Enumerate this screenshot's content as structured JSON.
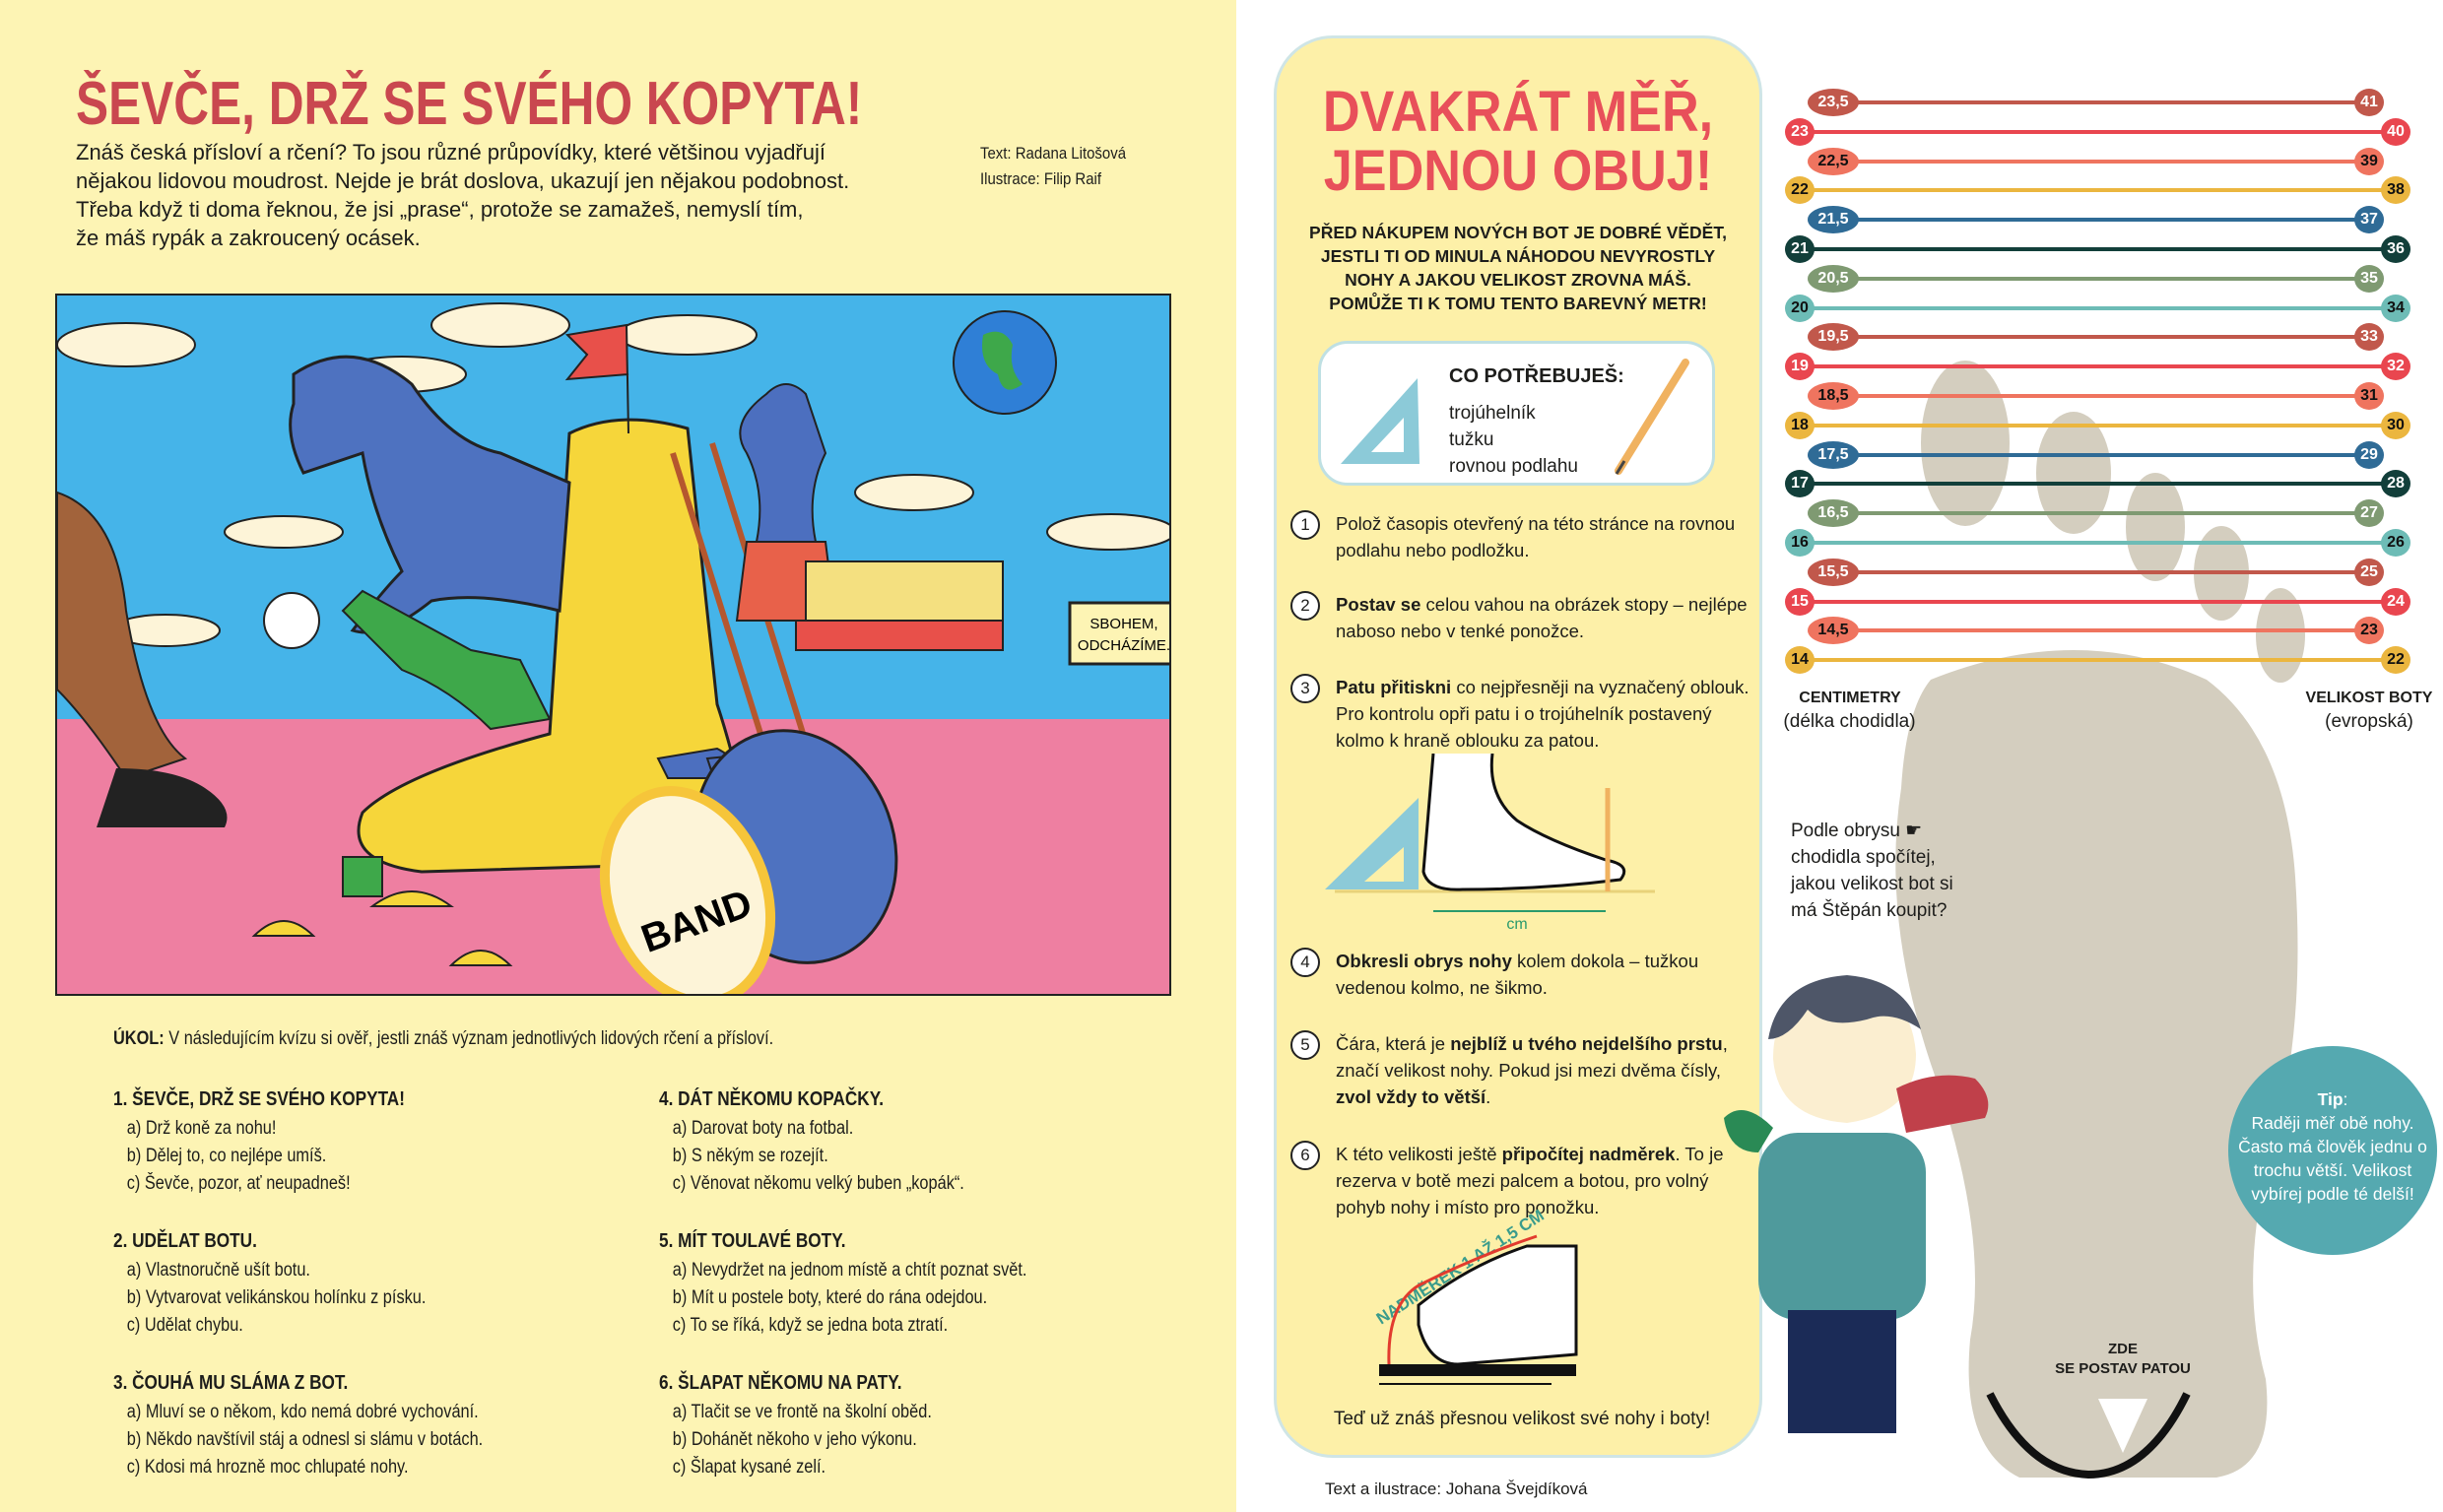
{
  "left_page": {
    "title": "ŠEVČE, DRŽ SE SVÉHO KOPYTA!",
    "intro_lines": [
      "Znáš česká přísloví a rčení? To jsou různé průpovídky, které většinou vyjadřují",
      "nějakou lidovou moudrost. Nejde je brát doslova, ukazují jen nějakou podobnost.",
      "Třeba když ti doma řeknou, že jsi „prase“, protože se zamažeš, nemyslí tím,",
      "že máš rypák a zakroucený ocásek."
    ],
    "credits": [
      "Text: Radana Litošová",
      "Ilustrace: Filip Raif"
    ],
    "illustration": {
      "speech_bubble": [
        "SBOHEM,",
        "ODCHÁZÍME."
      ],
      "drum_text": "BAND"
    },
    "task": {
      "label": "ÚKOL:",
      "text": " V následujícím kvízu si ověř, jestli znáš význam jednotlivých lidových rčení a přísloví."
    },
    "quiz": [
      {
        "q": "1. ŠEVČE, DRŽ SE SVÉHO KOPYTA!",
        "a": [
          "a) Drž koně za nohu!",
          "b) Dělej to, co nejlépe umíš.",
          "c) Ševče, pozor, ať neupadneš!"
        ]
      },
      {
        "q": "2. UDĚLAT BOTU.",
        "a": [
          "a) Vlastnoručně ušít botu.",
          "b) Vytvarovat velikánskou holínku z písku.",
          "c) Udělat chybu."
        ]
      },
      {
        "q": "3. ČOUHÁ MU SLÁMA Z BOT.",
        "a": [
          "a) Mluví se o někom, kdo nemá dobré vychování.",
          "b) Někdo navštívil stáj a odnesl si slámu v botách.",
          "c) Kdosi má hrozně moc chlupaté nohy."
        ]
      },
      {
        "q": "4. DÁT NĚKOMU KOPAČKY.",
        "a": [
          "a) Darovat boty na fotbal.",
          "b) S někým se rozejít.",
          "c) Věnovat někomu velký buben „kopák“."
        ]
      },
      {
        "q": "5. MÍT TOULAVÉ BOTY.",
        "a": [
          "a) Nevydržet na jednom místě a chtít poznat svět.",
          "b) Mít u postele boty, které do rána odejdou.",
          "c) To se říká, když se jedna bota ztratí."
        ]
      },
      {
        "q": "6. ŠLAPAT NĚKOMU NA PATY.",
        "a": [
          "a) Tlačit se ve frontě na školní oběd.",
          "b) Dohánět někoho v jeho výkonu.",
          "c) Šlapat kysané zelí."
        ]
      }
    ]
  },
  "right_page": {
    "title_lines": [
      "DVAKRÁT MĚŘ,",
      "JEDNOU OBUJ!"
    ],
    "subtitle_lines": [
      "PŘED NÁKUPEM NOVÝCH BOT JE DOBRÉ VĚDĚT,",
      "JESTLI TI OD MINULA NÁHODOU NEVYROSTLY",
      "NOHY A JAKOU VELIKOST ZROVNA MÁŠ.",
      "POMŮŽE TI K TOMU TENTO BAREVNÝ METR!"
    ],
    "needs": {
      "heading": "CO POTŘEBUJEŠ:",
      "items": [
        "trojúhelník",
        "tužku",
        "rovnou podlahu"
      ]
    },
    "steps": [
      {
        "n": "1",
        "parts": [
          {
            "t": "Polož časopis otevřený na této stránce na rovnou podlahu nebo podložku."
          }
        ]
      },
      {
        "n": "2",
        "parts": [
          {
            "t": "Postav se",
            "b": true
          },
          {
            "t": " celou vahou na obrázek stopy – nejlépe naboso nebo v tenké ponožce."
          }
        ]
      },
      {
        "n": "3",
        "parts": [
          {
            "t": "Patu přitiskni",
            "b": true
          },
          {
            "t": " co nejpřesněji na vyznačený oblouk. Pro kontrolu opři patu i o trojúhelník postavený kolmo k hraně oblouku za patou."
          }
        ]
      },
      {
        "n": "4",
        "parts": [
          {
            "t": "Obkresli obrys nohy",
            "b": true
          },
          {
            "t": " kolem dokola – tužkou vedenou kolmo, ne šikmo."
          }
        ]
      },
      {
        "n": "5",
        "parts": [
          {
            "t": "Čára, která je "
          },
          {
            "t": "nejblíž u tvého nejdelšího prstu",
            "b": true
          },
          {
            "t": ", značí velikost nohy. Pokud jsi mezi dvěma čísly, "
          },
          {
            "t": "zvol vždy to větší",
            "b": true
          },
          {
            "t": "."
          }
        ]
      },
      {
        "n": "6",
        "parts": [
          {
            "t": "K této velikosti ještě "
          },
          {
            "t": "připočítej nadměrek",
            "b": true
          },
          {
            "t": ". To je rezerva v botě mezi palcem a botou, pro volný pohyb nohy i místo pro ponožku."
          }
        ]
      }
    ],
    "figure_cm_label": "cm",
    "figure_nadmerek_label": "NADMĚREK 1 AŽ 1,5 CM",
    "final": "Teď  už znáš přesnou velikost své nohy i boty!",
    "credit": "Text a ilustrace: Johana Švejdíková",
    "size_chart": {
      "left_label": "CENTIMETRY",
      "left_sublabel": "(délka chodidla)",
      "right_label": "VELIKOST BOTY",
      "right_sublabel": "(evropská)",
      "rows": [
        {
          "cm": "23,5",
          "eu": "41",
          "color": "#c1584b"
        },
        {
          "cm": "23",
          "eu": "40",
          "color": "#e9464f"
        },
        {
          "cm": "22,5",
          "eu": "39",
          "color": "#ef745f"
        },
        {
          "cm": "22",
          "eu": "38",
          "color": "#ebb63f"
        },
        {
          "cm": "21,5",
          "eu": "37",
          "color": "#2f6b96"
        },
        {
          "cm": "21",
          "eu": "36",
          "color": "#123f3a"
        },
        {
          "cm": "20,5",
          "eu": "35",
          "color": "#7f9a72"
        },
        {
          "cm": "20",
          "eu": "34",
          "color": "#6dbcb6"
        },
        {
          "cm": "19,5",
          "eu": "33",
          "color": "#c1584b"
        },
        {
          "cm": "19",
          "eu": "32",
          "color": "#e9464f"
        },
        {
          "cm": "18,5",
          "eu": "31",
          "color": "#ef745f"
        },
        {
          "cm": "18",
          "eu": "30",
          "color": "#ebb63f"
        },
        {
          "cm": "17,5",
          "eu": "29",
          "color": "#2f6b96"
        },
        {
          "cm": "17",
          "eu": "28",
          "color": "#123f3a"
        },
        {
          "cm": "16,5",
          "eu": "27",
          "color": "#7f9a72"
        },
        {
          "cm": "16",
          "eu": "26",
          "color": "#6dbcb6"
        },
        {
          "cm": "15,5",
          "eu": "25",
          "color": "#c1584b"
        },
        {
          "cm": "15",
          "eu": "24",
          "color": "#e9464f"
        },
        {
          "cm": "14,5",
          "eu": "23",
          "color": "#ef745f"
        },
        {
          "cm": "14",
          "eu": "22",
          "color": "#ebb63f"
        }
      ]
    },
    "boy_question": "Podle obrysu ☛ chodidla spočítej, jakou velikost bot si má Štěpán koupit?",
    "tip": {
      "label": "Tip",
      "text": "Raději měř obě nohy. Často má člověk jednu o trochu větší. Velikost vybírej podle té delší!"
    },
    "heel_label": [
      "ZDE",
      "SE POSTAV PATOU"
    ]
  },
  "colors": {
    "left_bg": "#fdf4b4",
    "panel_bg": "#fdf0a8",
    "title_red": "#e8505a",
    "foot_gray": "#d4cebf",
    "tip_teal": "#55a9b0"
  }
}
